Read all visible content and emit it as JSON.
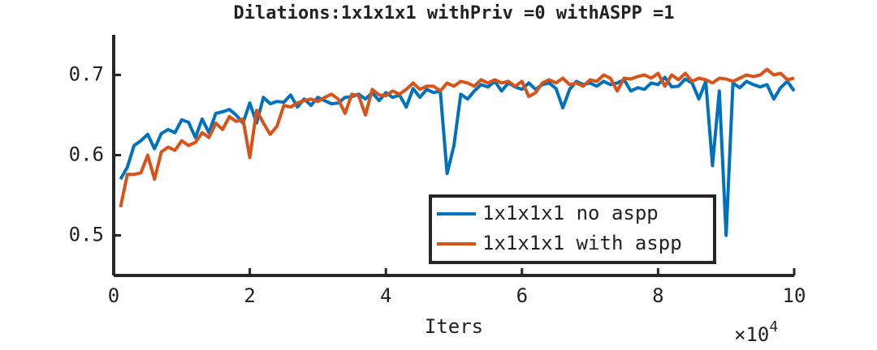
{
  "chart_data": {
    "type": "line",
    "title": "Dilations:1x1x1x1 withPriv =0 withASPP =1",
    "xlabel": "Iters",
    "x_multiplier": {
      "base": "×10",
      "exponent": "4"
    },
    "x": [
      1000,
      2000,
      3000,
      4000,
      5000,
      6000,
      7000,
      8000,
      9000,
      10000,
      11000,
      12000,
      13000,
      14000,
      15000,
      16000,
      17000,
      18000,
      19000,
      20000,
      21000,
      22000,
      23000,
      24000,
      25000,
      26000,
      27000,
      28000,
      29000,
      30000,
      31000,
      32000,
      33000,
      34000,
      35000,
      36000,
      37000,
      38000,
      39000,
      40000,
      41000,
      42000,
      43000,
      44000,
      45000,
      46000,
      47000,
      48000,
      49000,
      50000,
      51000,
      52000,
      53000,
      54000,
      55000,
      56000,
      57000,
      58000,
      59000,
      60000,
      61000,
      62000,
      63000,
      64000,
      65000,
      66000,
      67000,
      68000,
      69000,
      70000,
      71000,
      72000,
      73000,
      74000,
      75000,
      76000,
      77000,
      78000,
      79000,
      80000,
      81000,
      82000,
      83000,
      84000,
      85000,
      86000,
      87000,
      88000,
      89000,
      90000,
      91000,
      92000,
      93000,
      94000,
      95000,
      96000,
      97000,
      98000,
      99000,
      100000
    ],
    "series": [
      {
        "name": "1x1x1x1 no aspp",
        "color": "#0072BD",
        "values": [
          0.57,
          0.585,
          0.612,
          0.618,
          0.626,
          0.608,
          0.627,
          0.632,
          0.628,
          0.644,
          0.641,
          0.622,
          0.645,
          0.628,
          0.652,
          0.654,
          0.657,
          0.65,
          0.64,
          0.665,
          0.64,
          0.672,
          0.664,
          0.667,
          0.666,
          0.675,
          0.66,
          0.67,
          0.662,
          0.672,
          0.668,
          0.664,
          0.665,
          0.672,
          0.673,
          0.676,
          0.67,
          0.678,
          0.668,
          0.678,
          0.672,
          0.675,
          0.66,
          0.683,
          0.672,
          0.682,
          0.678,
          0.68,
          0.577,
          0.612,
          0.676,
          0.67,
          0.68,
          0.688,
          0.685,
          0.692,
          0.68,
          0.69,
          0.685,
          0.682,
          0.69,
          0.682,
          0.688,
          0.69,
          0.683,
          0.659,
          0.682,
          0.692,
          0.688,
          0.69,
          0.686,
          0.692,
          0.688,
          0.69,
          0.694,
          0.68,
          0.684,
          0.682,
          0.69,
          0.688,
          0.697,
          0.685,
          0.686,
          0.695,
          0.69,
          0.67,
          0.692,
          0.587,
          0.68,
          0.5,
          0.69,
          0.684,
          0.692,
          0.688,
          0.685,
          0.688,
          0.67,
          0.684,
          0.692,
          0.68
        ]
      },
      {
        "name": "1x1x1x1 with aspp",
        "color": "#D95319",
        "values": [
          0.535,
          0.576,
          0.576,
          0.578,
          0.6,
          0.57,
          0.604,
          0.61,
          0.606,
          0.618,
          0.612,
          0.616,
          0.628,
          0.622,
          0.64,
          0.632,
          0.648,
          0.642,
          0.645,
          0.597,
          0.656,
          0.64,
          0.626,
          0.636,
          0.662,
          0.66,
          0.665,
          0.668,
          0.67,
          0.667,
          0.672,
          0.676,
          0.67,
          0.652,
          0.676,
          0.674,
          0.65,
          0.682,
          0.675,
          0.674,
          0.68,
          0.676,
          0.682,
          0.69,
          0.682,
          0.686,
          0.686,
          0.68,
          0.69,
          0.686,
          0.692,
          0.69,
          0.686,
          0.694,
          0.69,
          0.694,
          0.69,
          0.692,
          0.686,
          0.692,
          0.673,
          0.678,
          0.69,
          0.694,
          0.69,
          0.696,
          0.688,
          0.69,
          0.686,
          0.694,
          0.692,
          0.7,
          0.696,
          0.68,
          0.696,
          0.695,
          0.698,
          0.7,
          0.696,
          0.702,
          0.686,
          0.7,
          0.694,
          0.702,
          0.692,
          0.696,
          0.694,
          0.69,
          0.696,
          0.695,
          0.692,
          0.696,
          0.7,
          0.698,
          0.7,
          0.707,
          0.7,
          0.702,
          0.694,
          0.696
        ]
      }
    ],
    "xlim": [
      0,
      100000
    ],
    "xticks": [
      {
        "value": 0,
        "label": "0"
      },
      {
        "value": 20000,
        "label": "2"
      },
      {
        "value": 40000,
        "label": "4"
      },
      {
        "value": 60000,
        "label": "6"
      },
      {
        "value": 80000,
        "label": "8"
      },
      {
        "value": 100000,
        "label": "10"
      }
    ],
    "ylim": [
      0.45,
      0.75
    ],
    "yticks": [
      0.5,
      0.6,
      0.7
    ],
    "grid": false,
    "legend": "south-east"
  }
}
